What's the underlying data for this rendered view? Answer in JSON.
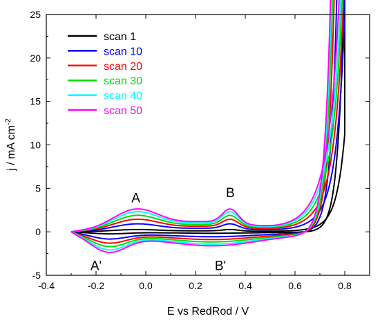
{
  "chart_data": {
    "type": "line",
    "xlabel": "E vs RedRod / V",
    "ylabel_main": "j / mA cm",
    "ylabel_sup": "-2",
    "xlim": [
      -0.4,
      0.9
    ],
    "ylim": [
      -5,
      25
    ],
    "xticks": [
      -0.4,
      -0.2,
      0.0,
      0.2,
      0.4,
      0.6,
      0.8
    ],
    "xtick_labels": [
      "-0.4",
      "-0.2",
      "0.0",
      "0.2",
      "0.4",
      "0.6",
      "0.8"
    ],
    "yticks": [
      -5,
      0,
      5,
      10,
      15,
      20,
      25
    ],
    "ytick_labels": [
      "-5",
      "0",
      "5",
      "10",
      "15",
      "20",
      "25"
    ],
    "grid": false,
    "legend_position": "top-left",
    "annotations": [
      {
        "text": "A",
        "x": -0.04,
        "y": 3.4
      },
      {
        "text": "B",
        "x": 0.34,
        "y": 4.0
      },
      {
        "text": "A'",
        "x": -0.2,
        "y": -4.4
      },
      {
        "text": "B'",
        "x": 0.3,
        "y": -4.4
      }
    ],
    "series": [
      {
        "name": "scan 1",
        "color": "#000000",
        "scale": 0.1,
        "peak": 9.1
      },
      {
        "name": "scan 10",
        "color": "#0000ff",
        "scale": 0.35,
        "peak": 17.2
      },
      {
        "name": "scan 20",
        "color": "#ff0000",
        "scale": 0.55,
        "peak": 18.2
      },
      {
        "name": "scan 30",
        "color": "#00dd00",
        "scale": 0.72,
        "peak": 19.0
      },
      {
        "name": "scan 40",
        "color": "#00ffff",
        "scale": 0.88,
        "peak": 19.3
      },
      {
        "name": "scan 50",
        "color": "#ff00ff",
        "scale": 1.0,
        "peak": 23.4
      }
    ]
  }
}
